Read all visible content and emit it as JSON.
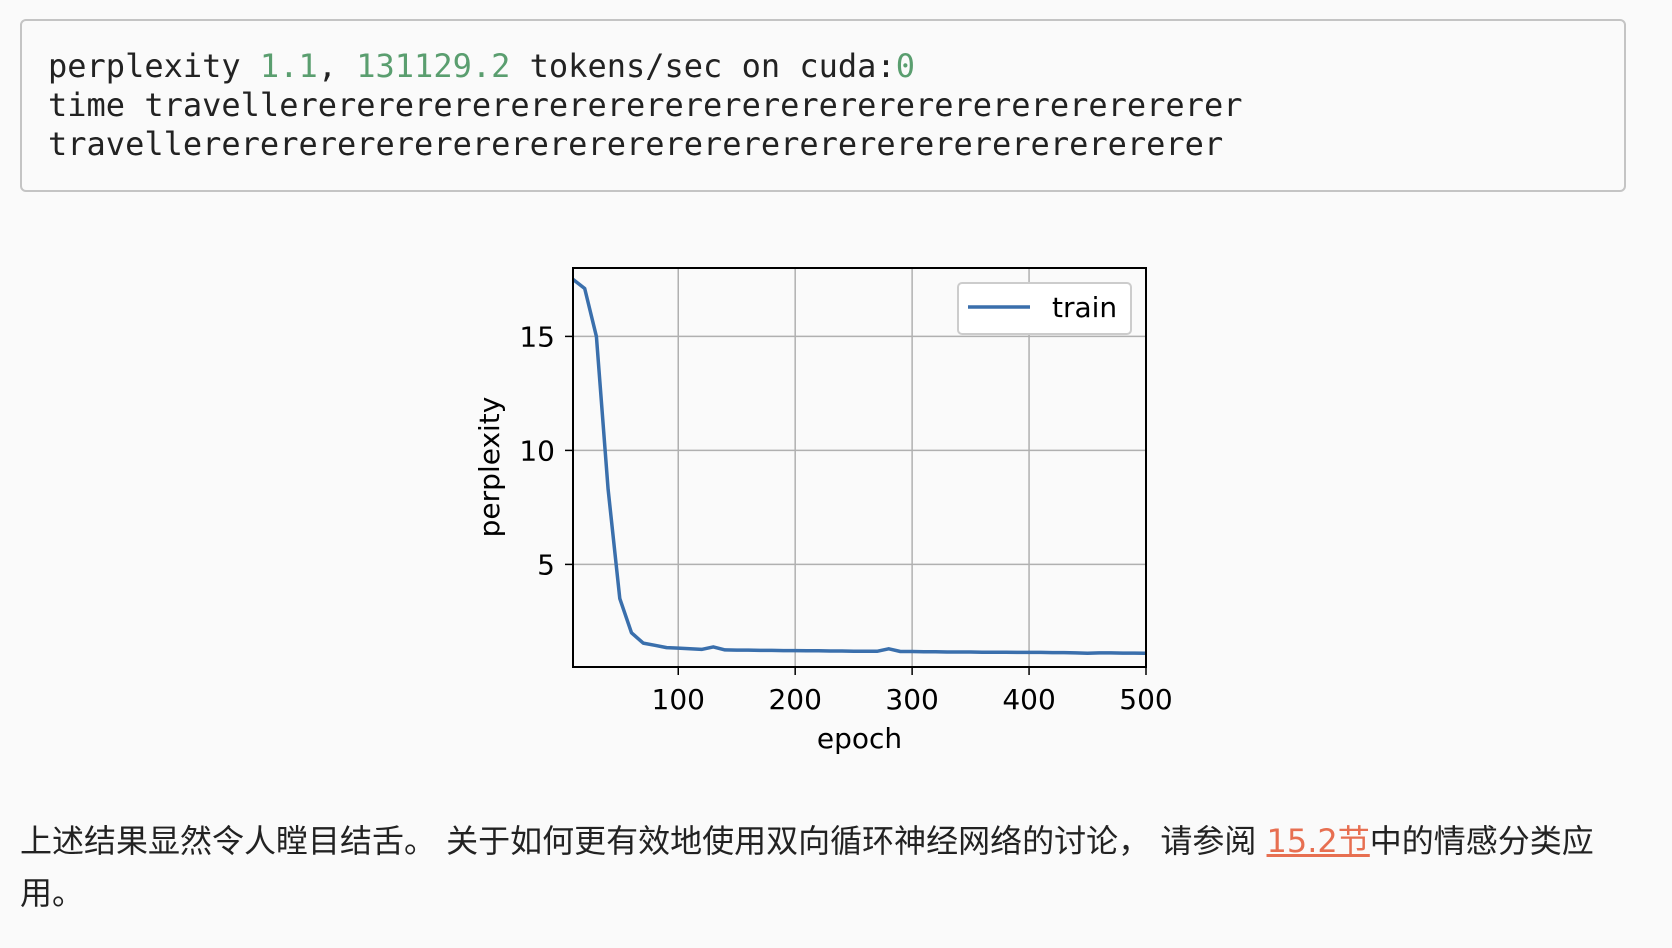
{
  "code_output": {
    "line1_prefix": "perplexity ",
    "perplexity_value": "1.1",
    "comma": ", ",
    "tokens_value": "131129.2",
    "line1_mid": " tokens/sec on cuda:",
    "device_index": "0",
    "line2": "time travellererererererererererererererererererererererererer",
    "line3": "travellererererererererererererererererererererererererererer"
  },
  "chart_data": {
    "type": "line",
    "xlabel": "epoch",
    "ylabel": "perplexity",
    "xlim": [
      10,
      500
    ],
    "ylim": [
      0.5,
      18
    ],
    "xticks": [
      100,
      200,
      300,
      400,
      500
    ],
    "yticks": [
      5,
      10,
      15
    ],
    "grid": true,
    "legend_position": "top-right",
    "series": [
      {
        "name": "train",
        "color": "#3a6fac",
        "x": [
          10,
          20,
          30,
          40,
          50,
          60,
          70,
          80,
          90,
          100,
          110,
          120,
          130,
          140,
          150,
          160,
          170,
          180,
          190,
          200,
          210,
          220,
          230,
          240,
          250,
          260,
          270,
          280,
          290,
          300,
          310,
          320,
          330,
          340,
          350,
          360,
          370,
          380,
          390,
          400,
          410,
          420,
          430,
          440,
          450,
          460,
          470,
          480,
          490,
          500
        ],
        "values": [
          17.5,
          17.1,
          15.0,
          8.3,
          3.5,
          2.0,
          1.55,
          1.45,
          1.35,
          1.33,
          1.3,
          1.27,
          1.38,
          1.25,
          1.24,
          1.24,
          1.23,
          1.23,
          1.22,
          1.22,
          1.21,
          1.21,
          1.2,
          1.2,
          1.19,
          1.19,
          1.19,
          1.3,
          1.18,
          1.18,
          1.17,
          1.17,
          1.16,
          1.16,
          1.16,
          1.15,
          1.15,
          1.15,
          1.14,
          1.14,
          1.14,
          1.13,
          1.13,
          1.12,
          1.1,
          1.12,
          1.12,
          1.11,
          1.11,
          1.1
        ]
      }
    ]
  },
  "prose": {
    "text_before": "上述结果显然令人瞠目结舌。 关于如何更有效地使用双向循环神经网络的讨论， 请参阅 ",
    "link_text": "15.2节",
    "text_after": "中的情感分类应用。"
  }
}
